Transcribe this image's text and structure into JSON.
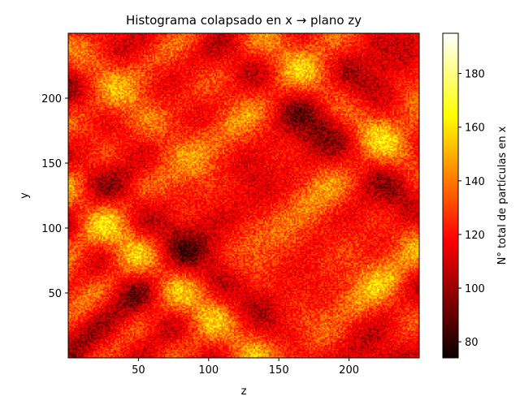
{
  "chart_data": {
    "type": "heatmap",
    "title": "Histograma colapsado en x → plano zy",
    "xlabel": "z",
    "ylabel": "y",
    "xlim": [
      0,
      250
    ],
    "ylim": [
      0,
      250
    ],
    "xticks": [
      50,
      100,
      150,
      200
    ],
    "yticks": [
      50,
      100,
      150,
      200
    ],
    "bins": 250,
    "colormap": "hot",
    "value_range": [
      74,
      195
    ],
    "colorbar": {
      "label": "N° total de partículas en x",
      "ticks": [
        80,
        100,
        120,
        140,
        160,
        180
      ]
    },
    "grid": false
  }
}
